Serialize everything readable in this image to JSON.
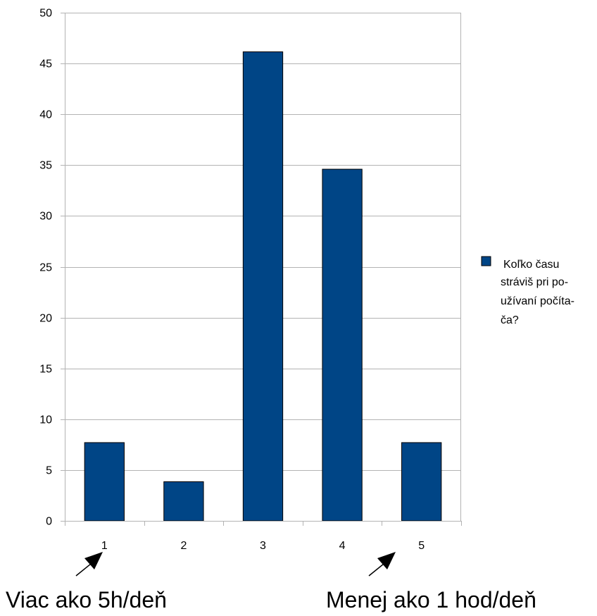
{
  "chart_data": {
    "type": "bar",
    "categories": [
      "1",
      "2",
      "3",
      "4",
      "5"
    ],
    "series": [
      {
        "name": "Koľko času stráviš pri po­užívaní počíta­ča?",
        "values": [
          7.7,
          3.85,
          46.15,
          34.6,
          7.7
        ],
        "color": "#004586"
      }
    ],
    "ylim": [
      0,
      50
    ],
    "yticks": [
      "0",
      "5",
      "10",
      "15",
      "20",
      "25",
      "30",
      "35",
      "40",
      "45",
      "50"
    ],
    "grid": true,
    "legend_position": "right",
    "legend_lines": [
      "Koľko času",
      "stráviš pri po-",
      "užívaní počíta-",
      "ča?"
    ],
    "annotations": [
      {
        "text": "Viac ako 5h/deň",
        "points_to_category": "1"
      },
      {
        "text": "Menej ako 1 hod/deň",
        "points_to_category": "5"
      }
    ],
    "colors": {
      "bar": "#004586",
      "bar_border": "#000000",
      "grid": "#b3b3b3",
      "axis": "#b3b3b3"
    }
  }
}
